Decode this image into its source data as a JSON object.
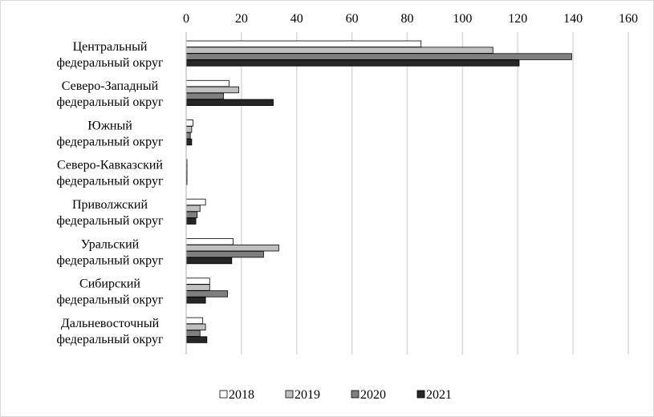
{
  "chart_data": {
    "type": "bar",
    "orientation": "horizontal",
    "categories": [
      [
        "Центральный",
        "федеральный округ"
      ],
      [
        "Северо-Западный",
        "федеральный округ"
      ],
      [
        "Южный",
        "федеральный округ"
      ],
      [
        "Северо-Кавказский",
        "федеральный округ"
      ],
      [
        "Приволжский",
        "федеральный  округ"
      ],
      [
        "Уральский",
        "федеральный округ"
      ],
      [
        "Сибирский",
        "федеральный округ"
      ],
      [
        "Дальневосточный",
        "федеральный округ"
      ]
    ],
    "series": [
      {
        "name": "2018",
        "color": "#ffffff",
        "values": [
          85,
          15.5,
          2.5,
          0.3,
          7,
          17,
          8.5,
          6
        ]
      },
      {
        "name": "2019",
        "color": "#bfbfbf",
        "values": [
          111,
          19,
          2,
          0.3,
          5,
          33.5,
          8.5,
          7
        ]
      },
      {
        "name": "2020",
        "color": "#7f7f7f",
        "values": [
          139.5,
          13.5,
          1.5,
          0.3,
          4,
          28,
          15,
          5
        ]
      },
      {
        "name": "2021",
        "color": "#262626",
        "values": [
          120.5,
          31.5,
          2,
          0.3,
          3.5,
          16.5,
          7,
          7.5
        ]
      }
    ],
    "xlim": [
      0,
      160
    ],
    "xticks": [
      0,
      20,
      40,
      60,
      80,
      100,
      120,
      140,
      160
    ],
    "grid": true,
    "legend_position": "bottom",
    "title": "",
    "xlabel": "",
    "ylabel": ""
  }
}
